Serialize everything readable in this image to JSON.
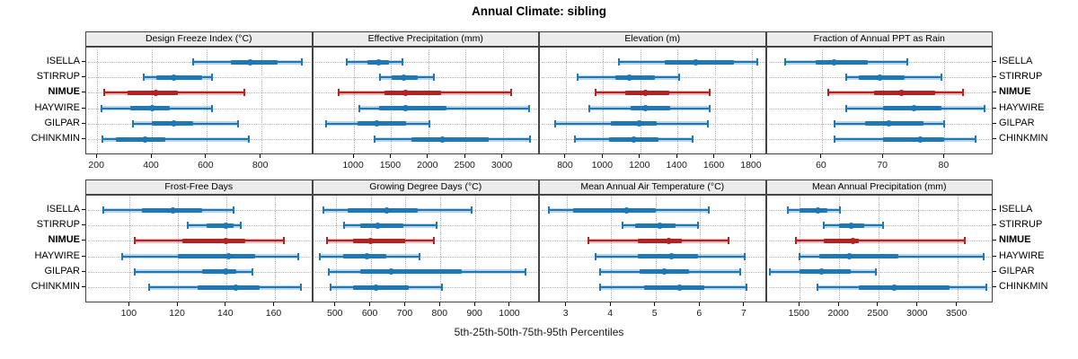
{
  "title": "Annual Climate: sibling",
  "footer": "5th-25th-50th-75th-95th Percentiles",
  "categories": [
    "ISELLA",
    "STIRRUP",
    "NIMUE",
    "HAYWIRE",
    "GILPAR",
    "CHINKMIN"
  ],
  "highlight_category": "NIMUE",
  "colors": {
    "normal": "#1f77b4",
    "normal_band": "rgba(31,119,180,0.30)",
    "highlight": "#b22222",
    "highlight_band": "rgba(178,34,34,0.30)",
    "strip_bg": "#ececec",
    "grid": "#b3b3b3",
    "border": "#444444"
  },
  "chart_data": {
    "type": "interval-dotplot",
    "percentile_labels": [
      "5th",
      "25th",
      "50th",
      "75th",
      "95th"
    ],
    "layout": "2 rows x 4 columns, shared category axis; NIMUE row highlighted in red; others blue",
    "panels": [
      {
        "title": "Design Freeze Index (°C)",
        "row": 0,
        "col": 0,
        "xlim": [
          160,
          990
        ],
        "ticks": [
          200,
          400,
          600,
          800
        ],
        "values": [
          [
            550,
            690,
            760,
            860,
            950
          ],
          [
            370,
            415,
            480,
            585,
            620
          ],
          [
            225,
            310,
            415,
            495,
            740
          ],
          [
            215,
            320,
            400,
            465,
            620
          ],
          [
            330,
            400,
            480,
            550,
            715
          ],
          [
            220,
            270,
            375,
            450,
            755
          ]
        ]
      },
      {
        "title": "Effective Precipitation (mm)",
        "row": 0,
        "col": 1,
        "xlim": [
          450,
          3500
        ],
        "ticks": [
          1000,
          1500,
          2000,
          2500,
          3000
        ],
        "values": [
          [
            900,
            1185,
            1335,
            1475,
            1650
          ],
          [
            1355,
            1510,
            1675,
            1860,
            2080
          ],
          [
            800,
            1410,
            1700,
            2170,
            3115
          ],
          [
            1075,
            1335,
            1695,
            2240,
            3360
          ],
          [
            630,
            1050,
            1305,
            1695,
            2010
          ],
          [
            1275,
            1775,
            2195,
            2810,
            3370
          ]
        ]
      },
      {
        "title": "Elevation (m)",
        "row": 0,
        "col": 2,
        "xlim": [
          660,
          1880
        ],
        "ticks": [
          800,
          1000,
          1200,
          1400,
          1600,
          1800
        ],
        "values": [
          [
            1085,
            1330,
            1500,
            1705,
            1830
          ],
          [
            865,
            1065,
            1140,
            1280,
            1410
          ],
          [
            960,
            1120,
            1230,
            1355,
            1575
          ],
          [
            925,
            1150,
            1230,
            1360,
            1575
          ],
          [
            740,
            1040,
            1195,
            1290,
            1565
          ],
          [
            850,
            1030,
            1165,
            1300,
            1480
          ]
        ]
      },
      {
        "title": "Fraction of Annual PPT as Rain",
        "row": 0,
        "col": 3,
        "xlim": [
          51,
          88
        ],
        "ticks": [
          60,
          70,
          80
        ],
        "values": [
          [
            54,
            59,
            62,
            67.5,
            74
          ],
          [
            64,
            66,
            69.5,
            73.5,
            79.5
          ],
          [
            61,
            68.5,
            73,
            78.5,
            83
          ],
          [
            64,
            70,
            75,
            79.5,
            86.5
          ],
          [
            62,
            67,
            71,
            76.5,
            80
          ],
          [
            62,
            70,
            76,
            80,
            85
          ]
        ]
      },
      {
        "title": "Frost-Free Days",
        "row": 1,
        "col": 0,
        "xlim": [
          82,
          176
        ],
        "ticks": [
          100,
          120,
          140,
          160
        ],
        "values": [
          [
            89,
            105,
            118,
            130,
            143
          ],
          [
            124,
            132,
            140,
            143,
            146
          ],
          [
            102,
            122,
            140,
            148,
            164
          ],
          [
            97,
            120,
            141,
            152,
            170
          ],
          [
            102,
            130,
            140,
            144,
            151
          ],
          [
            108,
            128,
            144,
            154,
            171
          ]
        ]
      },
      {
        "title": "Growing Degree Days (°C)",
        "row": 1,
        "col": 1,
        "xlim": [
          435,
          1085
        ],
        "ticks": [
          500,
          600,
          700,
          800,
          900,
          1000
        ],
        "values": [
          [
            465,
            535,
            645,
            735,
            890
          ],
          [
            525,
            570,
            620,
            695,
            790
          ],
          [
            475,
            550,
            600,
            700,
            780
          ],
          [
            455,
            520,
            590,
            645,
            740
          ],
          [
            480,
            570,
            660,
            860,
            1045
          ],
          [
            485,
            550,
            615,
            710,
            805
          ]
        ]
      },
      {
        "title": "Mean Annual Air Temperature (°C)",
        "row": 1,
        "col": 2,
        "xlim": [
          2.4,
          7.5
        ],
        "ticks": [
          3,
          4,
          5,
          6,
          7
        ],
        "values": [
          [
            2.6,
            3.15,
            4.35,
            5.0,
            6.2
          ],
          [
            4.25,
            4.55,
            5.1,
            5.45,
            5.95
          ],
          [
            3.5,
            4.6,
            5.3,
            5.6,
            6.65
          ],
          [
            3.65,
            4.6,
            5.35,
            5.95,
            7.0
          ],
          [
            3.75,
            4.65,
            5.2,
            5.75,
            6.9
          ],
          [
            3.75,
            4.75,
            5.55,
            6.1,
            7.05
          ]
        ]
      },
      {
        "title": "Mean Annual Precipitation (mm)",
        "row": 1,
        "col": 3,
        "xlim": [
          1080,
          3960
        ],
        "ticks": [
          1500,
          2000,
          2500,
          3000,
          3500
        ],
        "values": [
          [
            1350,
            1500,
            1730,
            1850,
            2010
          ],
          [
            1800,
            2000,
            2150,
            2320,
            2560
          ],
          [
            1450,
            1800,
            2170,
            2250,
            3590
          ],
          [
            1500,
            1750,
            2130,
            2750,
            3830
          ],
          [
            1120,
            1500,
            1780,
            2150,
            2470
          ],
          [
            1730,
            2250,
            2700,
            3400,
            3870
          ]
        ]
      }
    ]
  }
}
